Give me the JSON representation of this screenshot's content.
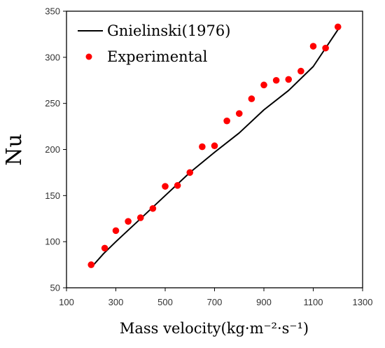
{
  "chart_data": {
    "type": "scatter",
    "xlabel": "Mass velocity(kg·m⁻²·s⁻¹)",
    "ylabel": "Nu",
    "xlim": [
      100,
      1300
    ],
    "ylim": [
      50,
      350
    ],
    "x_ticks": [
      100,
      300,
      500,
      700,
      900,
      1100,
      1300
    ],
    "y_ticks": [
      50,
      100,
      150,
      200,
      250,
      300,
      350
    ],
    "grid": false,
    "legend_position": "top-left",
    "series": [
      {
        "name": "Gnielinski(1976)",
        "kind": "line",
        "color": "#000000",
        "x": [
          200,
          250,
          300,
          400,
          500,
          600,
          700,
          800,
          900,
          1000,
          1100,
          1200
        ],
        "y": [
          72,
          87,
          100,
          125,
          150,
          175,
          197,
          218,
          243,
          264,
          290,
          330
        ]
      },
      {
        "name": "Experimental",
        "kind": "scatter",
        "color": "#ff0000",
        "x": [
          200,
          255,
          300,
          350,
          400,
          450,
          500,
          550,
          600,
          650,
          700,
          750,
          800,
          850,
          900,
          950,
          1000,
          1050,
          1100,
          1150,
          1200
        ],
        "y": [
          75,
          93,
          112,
          122,
          126,
          136,
          160,
          161,
          175,
          203,
          204,
          231,
          239,
          255,
          270,
          275,
          276,
          285,
          312,
          310,
          333
        ]
      }
    ]
  }
}
